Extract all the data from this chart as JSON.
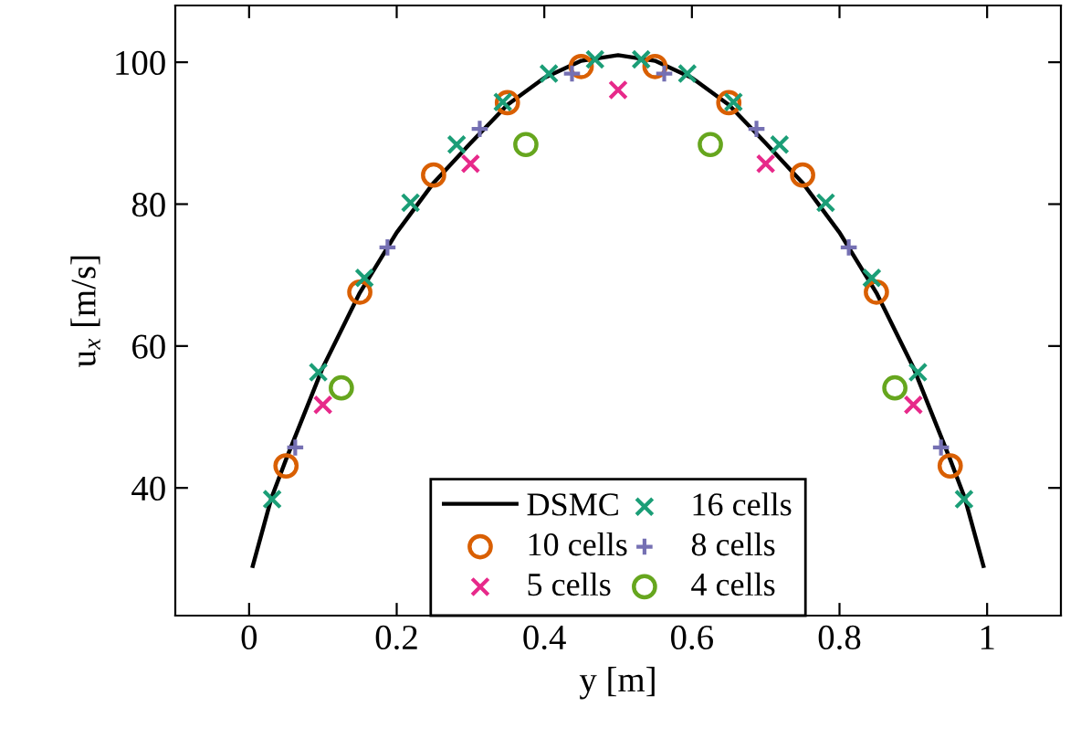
{
  "chart_data": {
    "type": "scatter",
    "xlabel": "y [m]",
    "ylabel": "u$_{x}$ [m/s]",
    "xlim": [
      -0.1,
      1.1
    ],
    "ylim": [
      22,
      108
    ],
    "xticks": [
      0,
      0.2,
      0.4,
      0.6,
      0.8,
      1
    ],
    "yticks": [
      40,
      60,
      80,
      100
    ],
    "grid": false,
    "legend": "bottom",
    "series": [
      {
        "name": "DSMC",
        "type": "line",
        "color": "#000000",
        "marker": "none",
        "line_style": "solid",
        "x": [
          0.005,
          0.03,
          0.05,
          0.1,
          0.15,
          0.2,
          0.25,
          0.3,
          0.35,
          0.4,
          0.45,
          0.5,
          0.55,
          0.6,
          0.65,
          0.7,
          0.75,
          0.8,
          0.85,
          0.9,
          0.95,
          0.97,
          0.995
        ],
        "values": [
          29,
          38.5,
          44,
          57,
          67.5,
          76,
          83,
          88.6,
          94,
          97.8,
          100.2,
          101,
          100.2,
          97.8,
          94,
          88.6,
          83,
          76,
          67.5,
          57,
          44,
          38.5,
          29
        ]
      },
      {
        "name": "10 cells",
        "color": "#d95f02",
        "marker": "circle",
        "x": [
          0.05,
          0.15,
          0.25,
          0.35,
          0.45,
          0.55,
          0.65,
          0.75,
          0.85,
          0.95
        ],
        "values": [
          43.1,
          67.6,
          84.1,
          94.3,
          99.4,
          99.4,
          94.3,
          84.1,
          67.6,
          43.1
        ]
      },
      {
        "name": "5 cells",
        "color": "#e7298a",
        "marker": "cross",
        "x": [
          0.1,
          0.3,
          0.5,
          0.7,
          0.9
        ],
        "values": [
          51.7,
          85.7,
          96.1,
          85.7,
          51.7
        ]
      },
      {
        "name": "16 cells",
        "color": "#1b9e77",
        "marker": "cross",
        "x": [
          0.03125,
          0.09375,
          0.15625,
          0.21875,
          0.28125,
          0.34375,
          0.40625,
          0.46875,
          0.53125,
          0.59375,
          0.65625,
          0.71875,
          0.78125,
          0.84375,
          0.90625,
          0.96875
        ],
        "values": [
          38.4,
          56.3,
          69.6,
          80.2,
          88.4,
          94.4,
          98.4,
          100.4,
          100.4,
          98.4,
          94.4,
          88.4,
          80.2,
          69.6,
          56.3,
          38.4
        ]
      },
      {
        "name": "8 cells",
        "color": "#7570b3",
        "marker": "plus",
        "x": [
          0.0625,
          0.1875,
          0.3125,
          0.4375,
          0.5625,
          0.6875,
          0.8125,
          0.9375
        ],
        "values": [
          45.7,
          73.9,
          90.6,
          98.4,
          98.4,
          90.6,
          73.9,
          45.7
        ]
      },
      {
        "name": "4 cells",
        "color": "#66a61e",
        "marker": "circle",
        "x": [
          0.125,
          0.375,
          0.625,
          0.875
        ],
        "values": [
          54.1,
          88.4,
          88.4,
          54.1
        ]
      }
    ]
  }
}
